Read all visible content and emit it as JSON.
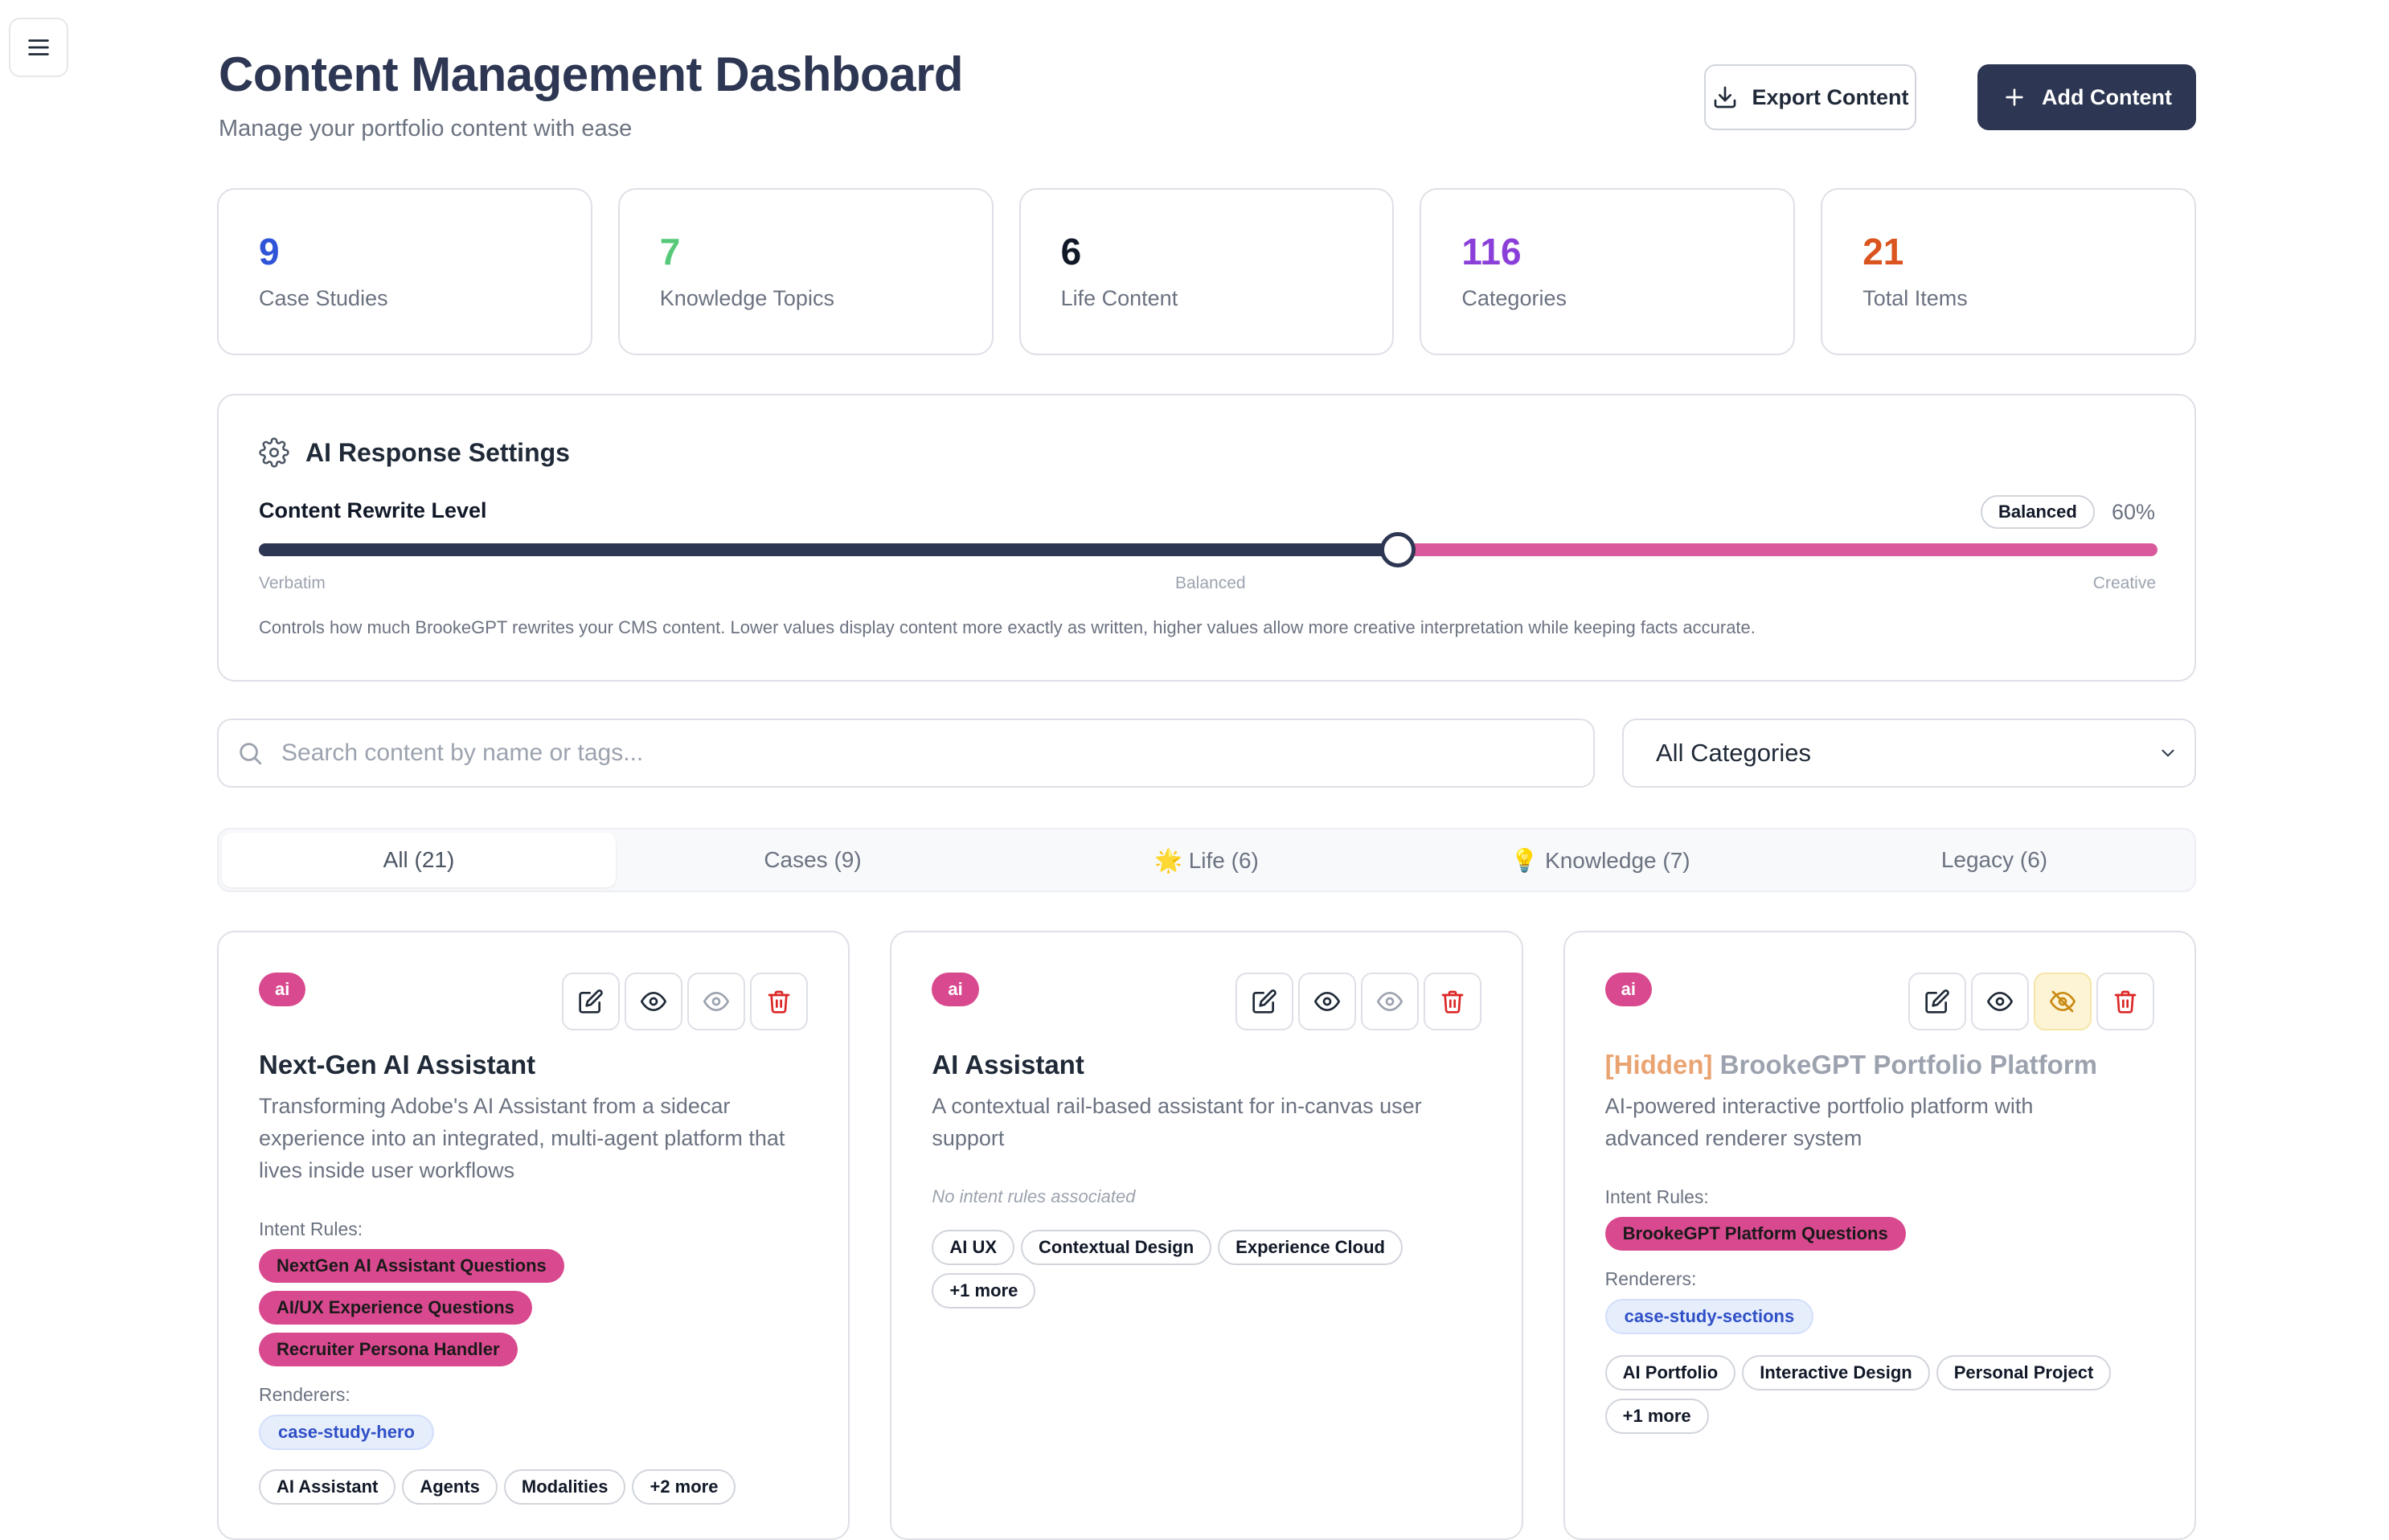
{
  "header": {
    "title": "Content Management Dashboard",
    "subtitle": "Manage your portfolio content with ease",
    "export_label": "Export Content",
    "add_label": "Add Content"
  },
  "stats": [
    {
      "value": "9",
      "label": "Case Studies",
      "color": "#2f54d8"
    },
    {
      "value": "7",
      "label": "Knowledge Topics",
      "color": "#57c97a"
    },
    {
      "value": "6",
      "label": "Life Content",
      "color": "#111827"
    },
    {
      "value": "116",
      "label": "Categories",
      "color": "#8b3fd9"
    },
    {
      "value": "21",
      "label": "Total Items",
      "color": "#d9541e"
    }
  ],
  "settings": {
    "title": "AI Response Settings",
    "level_label": "Content Rewrite Level",
    "badge": "Balanced",
    "percent_text": "60%",
    "value_fraction": 0.6,
    "ticks": [
      "Verbatim",
      "Balanced",
      "Creative"
    ],
    "description": "Controls how much BrookeGPT rewrites your CMS content. Lower values display content more exactly as written, higher values allow more creative interpretation while keeping facts accurate."
  },
  "search": {
    "placeholder": "Search content by name or tags..."
  },
  "category_select": {
    "value": "All Categories"
  },
  "tabs": [
    {
      "label": "All (21)",
      "active": true
    },
    {
      "label": "Cases (9)",
      "active": false
    },
    {
      "label": "🌟 Life (6)",
      "active": false
    },
    {
      "label": "💡 Knowledge (7)",
      "active": false
    },
    {
      "label": "Legacy (6)",
      "active": false
    }
  ],
  "labels": {
    "intent_rules": "Intent Rules:",
    "renderers": "Renderers:",
    "no_intent": "No intent rules associated"
  },
  "cards": [
    {
      "badge": "ai",
      "hidden_prefix": "",
      "title": "Next-Gen AI Assistant",
      "description": "Transforming Adobe's AI Assistant from a sidecar experience into an integrated, multi-agent platform that lives inside user workflows",
      "intent_rules": [
        "NextGen AI Assistant Questions",
        "AI/UX Experience Questions",
        "Recruiter Persona Handler"
      ],
      "renderers": [
        "case-study-hero"
      ],
      "tags": [
        "AI Assistant",
        "Agents",
        "Modalities",
        "+2 more"
      ]
    },
    {
      "badge": "ai",
      "hidden_prefix": "",
      "title": "AI Assistant",
      "description": "A contextual rail-based assistant for in-canvas user support",
      "intent_rules": [],
      "renderers": [],
      "tags": [
        "AI UX",
        "Contextual Design",
        "Experience Cloud",
        "+1 more"
      ]
    },
    {
      "badge": "ai",
      "hidden_prefix": "[Hidden]",
      "title": "BrookeGPT Portfolio Platform",
      "description": "AI-powered interactive portfolio platform with advanced renderer system",
      "intent_rules": [
        "BrookeGPT Platform Questions"
      ],
      "renderers": [
        "case-study-sections"
      ],
      "tags": [
        "AI Portfolio",
        "Interactive Design",
        "Personal Project",
        "+1 more"
      ]
    }
  ]
}
